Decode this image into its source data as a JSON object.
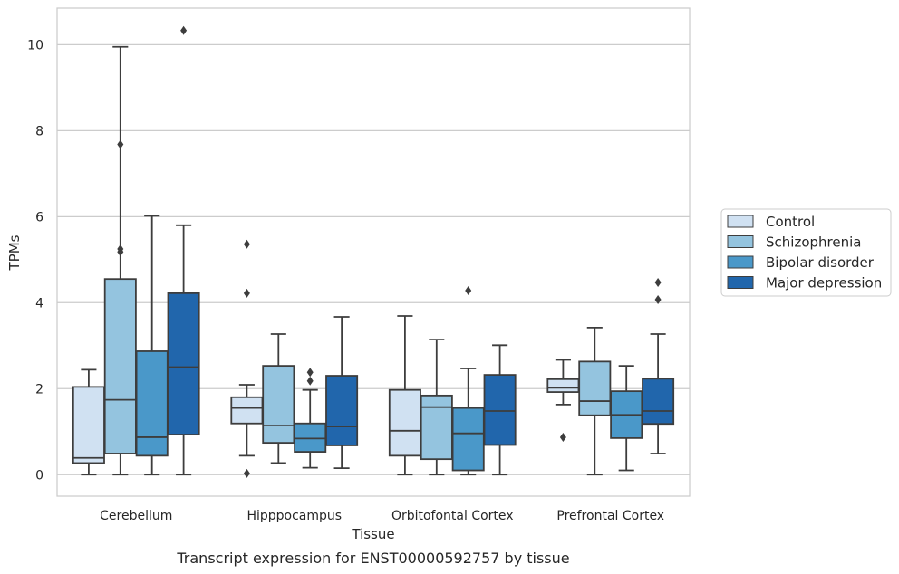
{
  "chart_data": {
    "type": "box",
    "title": "",
    "caption": "Transcript expression for ENST00000592757 by tissue",
    "xlabel": "Tissue",
    "ylabel": "TPMs",
    "ylim": [
      -0.5,
      10.85
    ],
    "yticks": [
      0,
      2,
      4,
      6,
      8,
      10
    ],
    "grid": "horizontal",
    "legend_position": "right",
    "categories": [
      "Cerebellum",
      "Hipppocampus",
      "Orbitofontal Cortex",
      "Prefrontal Cortex"
    ],
    "series": [
      {
        "name": "Control",
        "color": "#d0e1f2",
        "boxes": [
          {
            "whislo": 0.0,
            "q1": 0.27,
            "med": 0.39,
            "q3": 2.04,
            "whishi": 2.44,
            "fliers": []
          },
          {
            "whislo": 0.44,
            "q1": 1.19,
            "med": 1.55,
            "q3": 1.8,
            "whishi": 2.09,
            "fliers": [
              0.03,
              4.22,
              5.36
            ]
          },
          {
            "whislo": 0.0,
            "q1": 0.44,
            "med": 1.02,
            "q3": 1.97,
            "whishi": 3.69,
            "fliers": []
          },
          {
            "whislo": 1.63,
            "q1": 1.92,
            "med": 2.02,
            "q3": 2.22,
            "whishi": 2.67,
            "fliers": [
              0.87
            ]
          }
        ]
      },
      {
        "name": "Schizophrenia",
        "color": "#94c4df",
        "boxes": [
          {
            "whislo": 0.0,
            "q1": 0.49,
            "med": 1.74,
            "q3": 4.55,
            "whishi": 9.95,
            "fliers": [
              5.18,
              5.25,
              7.68
            ]
          },
          {
            "whislo": 0.27,
            "q1": 0.74,
            "med": 1.14,
            "q3": 2.53,
            "whishi": 3.27,
            "fliers": []
          },
          {
            "whislo": 0.0,
            "q1": 0.36,
            "med": 1.57,
            "q3": 1.84,
            "whishi": 3.14,
            "fliers": []
          },
          {
            "whislo": 0.0,
            "q1": 1.38,
            "med": 1.71,
            "q3": 2.63,
            "whishi": 3.42,
            "fliers": []
          }
        ]
      },
      {
        "name": "Bipolar disorder",
        "color": "#4a98c9",
        "boxes": [
          {
            "whislo": 0.0,
            "q1": 0.44,
            "med": 0.87,
            "q3": 2.87,
            "whishi": 6.02,
            "fliers": []
          },
          {
            "whislo": 0.16,
            "q1": 0.53,
            "med": 0.84,
            "q3": 1.19,
            "whishi": 1.97,
            "fliers": [
              2.18,
              2.38
            ]
          },
          {
            "whislo": 0.0,
            "q1": 0.1,
            "med": 0.96,
            "q3": 1.55,
            "whishi": 2.47,
            "fliers": [
              4.28
            ]
          },
          {
            "whislo": 0.1,
            "q1": 0.85,
            "med": 1.39,
            "q3": 1.94,
            "whishi": 2.53,
            "fliers": []
          }
        ]
      },
      {
        "name": "Major depression",
        "color": "#2166ac",
        "boxes": [
          {
            "whislo": 0.0,
            "q1": 0.93,
            "med": 2.5,
            "q3": 4.22,
            "whishi": 5.8,
            "fliers": [
              10.33
            ]
          },
          {
            "whislo": 0.15,
            "q1": 0.68,
            "med": 1.12,
            "q3": 2.3,
            "whishi": 3.67,
            "fliers": []
          },
          {
            "whislo": 0.0,
            "q1": 0.69,
            "med": 1.48,
            "q3": 2.32,
            "whishi": 3.01,
            "fliers": []
          },
          {
            "whislo": 0.49,
            "q1": 1.18,
            "med": 1.48,
            "q3": 2.23,
            "whishi": 3.27,
            "fliers": [
              4.07,
              4.47
            ]
          }
        ]
      }
    ]
  }
}
